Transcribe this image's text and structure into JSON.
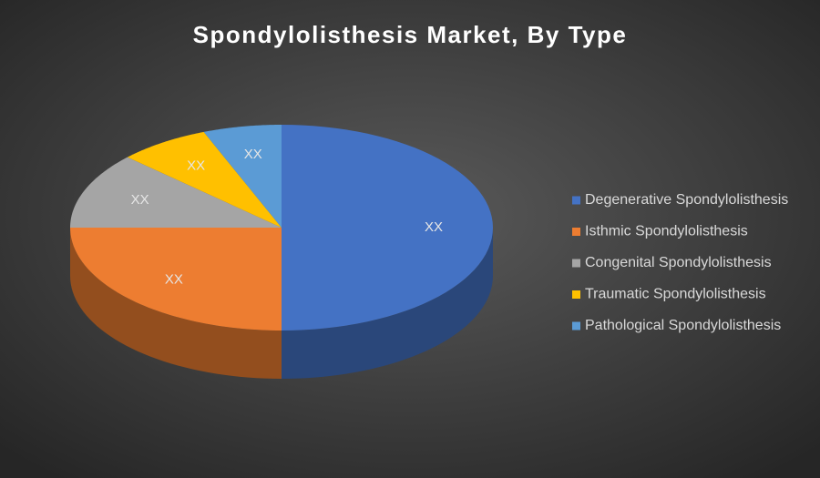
{
  "chart_data": {
    "type": "pie3d",
    "title": "Spondylolisthesis Market, By Type",
    "categories": [
      "Degenerative Spondylolisthesis",
      "Isthmic Spondylolisthesis",
      "Congenital Spondylolisthesis",
      "Traumatic Spondylolisthesis",
      "Pathological Spondylolisthesis"
    ],
    "values": [
      50,
      25,
      12,
      7,
      6
    ],
    "value_labels": [
      "XX",
      "XX",
      "XX",
      "XX",
      "XX"
    ],
    "colors": [
      "#4472c4",
      "#ed7d31",
      "#a5a5a5",
      "#ffc000",
      "#5b9bd5"
    ],
    "legend": "right"
  }
}
